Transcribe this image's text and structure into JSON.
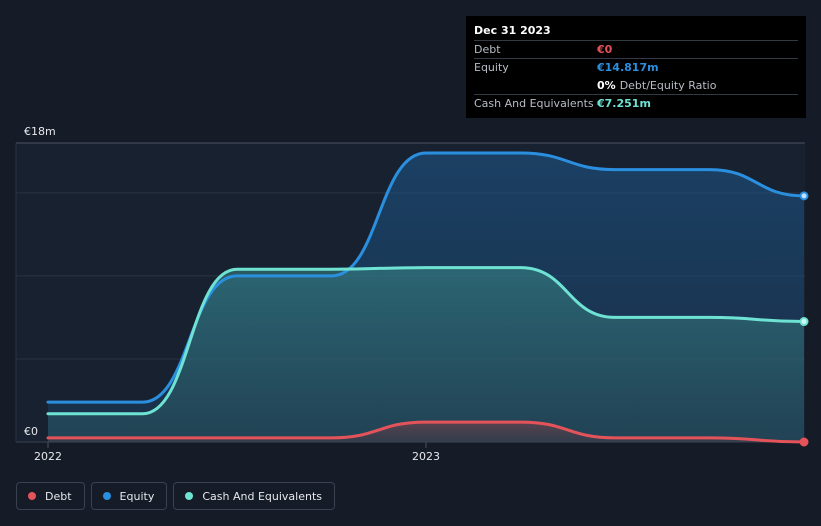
{
  "tooltip": {
    "date": "Dec 31 2023",
    "debt_label": "Debt",
    "debt_value": "€0",
    "equity_label": "Equity",
    "equity_value": "€14.817m",
    "ratio_value": "0%",
    "ratio_label": "Debt/Equity Ratio",
    "cash_label": "Cash And Equivalents",
    "cash_value": "€7.251m"
  },
  "colors": {
    "debt": "#e5535a",
    "equity": "#2b8fe0",
    "cash": "#6fe3d3",
    "background": "#151b27"
  },
  "legend": [
    {
      "label": "Debt",
      "color": "#e5535a"
    },
    {
      "label": "Equity",
      "color": "#2b8fe0"
    },
    {
      "label": "Cash And Equivalents",
      "color": "#6fe3d3"
    }
  ],
  "chart_data": {
    "type": "area",
    "y_unit": "€m",
    "ylim": [
      0,
      18
    ],
    "y_tick_labels": [
      {
        "value": 18,
        "label": "€18m"
      },
      {
        "value": 0,
        "label": "€0"
      }
    ],
    "x_tick_labels": [
      {
        "value": 2022.0,
        "label": "2022"
      },
      {
        "value": 2023.0,
        "label": "2023"
      }
    ],
    "xlim": [
      2022.0,
      2024.0
    ],
    "series": [
      {
        "name": "Equity",
        "color": "#2b8fe0",
        "points": [
          [
            2022.0,
            2.4
          ],
          [
            2022.25,
            2.4
          ],
          [
            2022.5,
            10.0
          ],
          [
            2022.75,
            10.0
          ],
          [
            2023.0,
            17.4
          ],
          [
            2023.25,
            17.4
          ],
          [
            2023.5,
            16.4
          ],
          [
            2023.75,
            16.4
          ],
          [
            2024.0,
            14.817
          ]
        ]
      },
      {
        "name": "Cash And Equivalents",
        "color": "#6fe3d3",
        "points": [
          [
            2022.0,
            1.7
          ],
          [
            2022.25,
            1.7
          ],
          [
            2022.5,
            10.4
          ],
          [
            2022.75,
            10.4
          ],
          [
            2023.0,
            10.5
          ],
          [
            2023.25,
            10.5
          ],
          [
            2023.5,
            7.5
          ],
          [
            2023.75,
            7.5
          ],
          [
            2024.0,
            7.251
          ]
        ]
      },
      {
        "name": "Debt",
        "color": "#e5535a",
        "points": [
          [
            2022.0,
            0.25
          ],
          [
            2022.25,
            0.25
          ],
          [
            2022.5,
            0.25
          ],
          [
            2022.75,
            0.25
          ],
          [
            2023.0,
            1.2
          ],
          [
            2023.25,
            1.2
          ],
          [
            2023.5,
            0.25
          ],
          [
            2023.75,
            0.25
          ],
          [
            2024.0,
            0.0
          ]
        ]
      }
    ],
    "grid": true,
    "legend_position": "bottom-left"
  }
}
